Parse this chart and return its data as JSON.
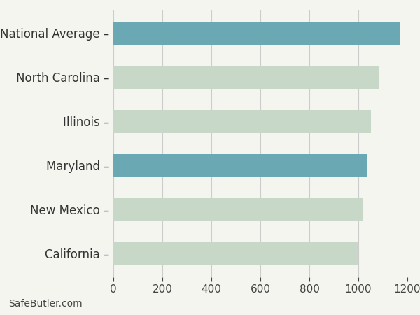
{
  "categories": [
    "California",
    "New Mexico",
    "Maryland",
    "Illinois",
    "North Carolina",
    "National Average"
  ],
  "values": [
    1000,
    1020,
    1035,
    1050,
    1085,
    1172
  ],
  "bar_colors": [
    "#c8d8c8",
    "#c8d8c8",
    "#6aa8b4",
    "#c8d8c8",
    "#c8d8c8",
    "#6aa8b4"
  ],
  "xlim": [
    0,
    1200
  ],
  "xticks": [
    0,
    200,
    400,
    600,
    800,
    1000,
    1200
  ],
  "background_color": "#f5f5f0",
  "bar_height": 0.52,
  "label_fontsize": 12,
  "tick_fontsize": 11,
  "watermark": "SafeButler.com",
  "watermark_fontsize": 10,
  "tick_label_suffix": " –"
}
